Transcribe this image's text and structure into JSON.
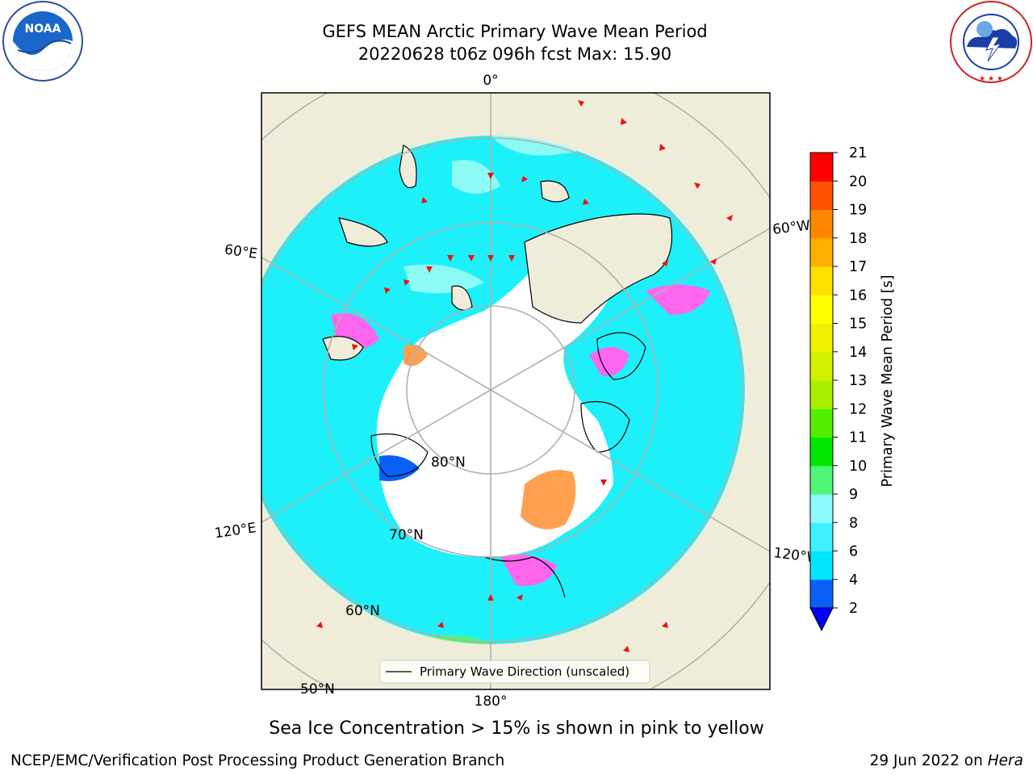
{
  "title": {
    "line1": "GEFS MEAN Arctic Primary Wave Mean Period",
    "line2": "20220628 t06z 096h fcst   Max: 15.90"
  },
  "logos": {
    "left": {
      "text": "NOAA",
      "ring_text": "NATIONAL OCEANIC AND ATMOSPHERIC ADMINISTRATION · U.S. DEPARTMENT OF COMMERCE"
    },
    "right": {
      "ring_text": "NATIONAL WEATHER SERVICE"
    }
  },
  "map": {
    "projection": "north-polar-stereographic",
    "meridian_labels": [
      "0°",
      "60°W",
      "120°W",
      "180°",
      "120°E",
      "60°E"
    ],
    "parallel_labels": [
      "80°N",
      "70°N",
      "60°N",
      "50°N"
    ],
    "legend": "Primary Wave Direction (unscaled)",
    "colors": {
      "land": "#efedd9",
      "ice_region": "#ffffff",
      "ocean_main": "#1ef0fa",
      "ocean_light": "#8cfaf5",
      "ice_edge": "#ff66ee",
      "ice_orange": "#ffa050",
      "arrow": "#ee1111",
      "grid": "#b0b0b0"
    }
  },
  "colorbar": {
    "label": "Primary Wave Mean Period [s]",
    "ticks": [
      "2",
      "4",
      "6",
      "8",
      "9",
      "10",
      "11",
      "12",
      "13",
      "14",
      "15",
      "16",
      "17",
      "18",
      "19",
      "20",
      "21"
    ],
    "colors": [
      "#0a5ff5",
      "#00e6ff",
      "#3cf0ff",
      "#8cfaff",
      "#50f578",
      "#00e600",
      "#50f000",
      "#a8f000",
      "#d2f000",
      "#f0f000",
      "#ffff00",
      "#ffe100",
      "#ffaf00",
      "#ff8700",
      "#ff5000",
      "#ff0000"
    ],
    "extend": "min",
    "extend_color": "#0000ff"
  },
  "caption": "Sea Ice Concentration > 15% is shown in pink to yellow",
  "footer": {
    "left": "NCEP/EMC/Verification Post Processing Product Generation Branch",
    "right_date": "29 Jun 2022 on ",
    "right_machine": "Hera"
  }
}
